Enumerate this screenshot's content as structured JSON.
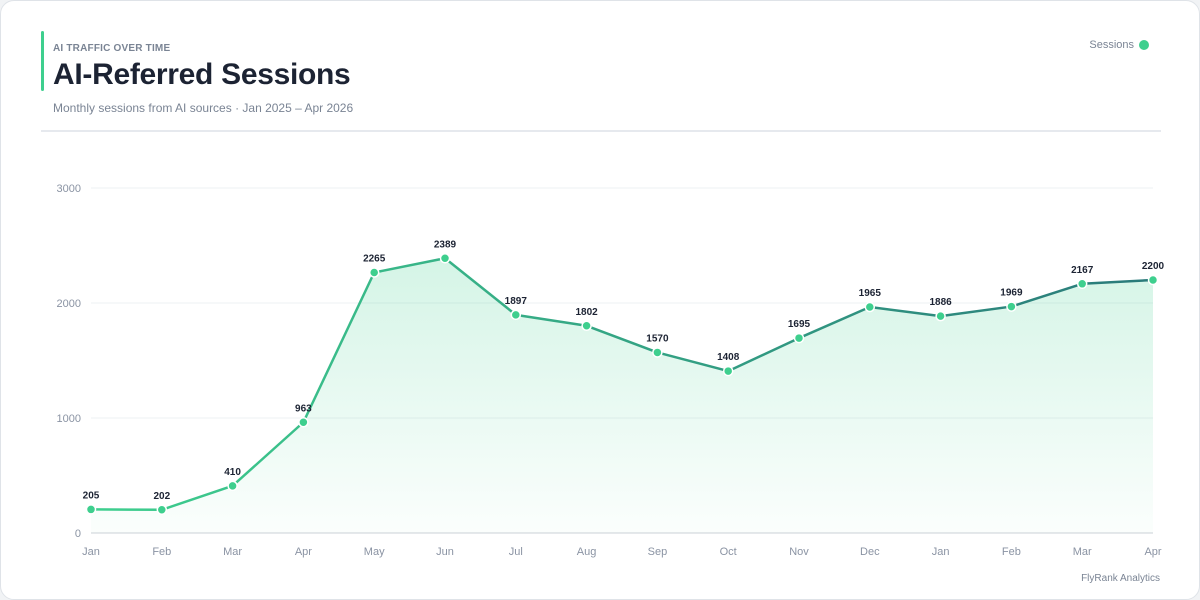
{
  "header": {
    "eyebrow": "AI TRAFFIC OVER TIME",
    "title": "AI-Referred Sessions",
    "subtitle": "Monthly sessions from AI sources · Jan 2025 – Apr 2026"
  },
  "legend": {
    "label": "Sessions",
    "color": "#3ecf8e"
  },
  "footer": {
    "credit": "FlyRank Analytics"
  },
  "colors": {
    "line_start": "#3ecf8e",
    "line_end": "#2a7a7a",
    "point": "#3ecf8e",
    "area": "#3ecf8e",
    "grid": "#edf0f3"
  },
  "chart_data": {
    "type": "line",
    "categories": [
      "Jan",
      "Feb",
      "Mar",
      "Apr",
      "May",
      "Jun",
      "Jul",
      "Aug",
      "Sep",
      "Oct",
      "Nov",
      "Dec",
      "Jan",
      "Feb",
      "Mar",
      "Apr"
    ],
    "series": [
      {
        "name": "Sessions",
        "values": [
          205,
          202,
          410,
          963,
          2265,
          2389,
          1897,
          1802,
          1570,
          1408,
          1695,
          1965,
          1886,
          1969,
          2167,
          2200
        ]
      }
    ],
    "ylim": [
      0,
      3000
    ],
    "yticks": [
      0,
      1000,
      2000,
      3000
    ],
    "grid": true,
    "area_fill": true,
    "legend_position": "top-right"
  }
}
